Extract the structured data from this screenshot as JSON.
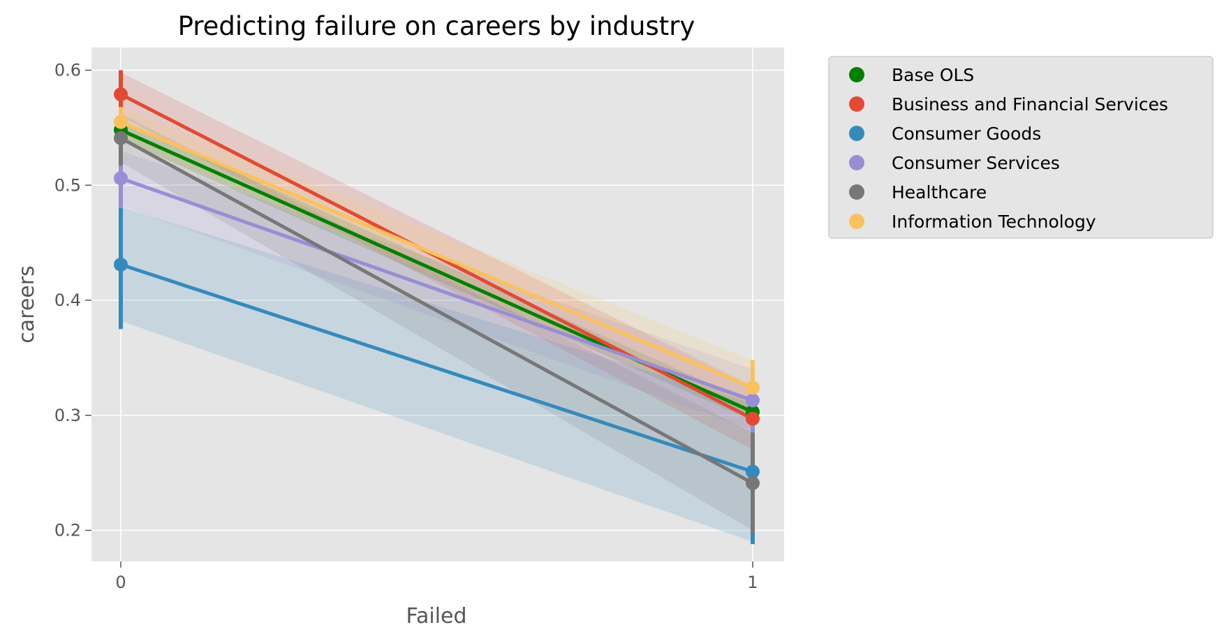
{
  "chart_data": {
    "type": "line",
    "title": "Predicting failure on careers by industry",
    "xlabel": "Failed",
    "ylabel": "careers",
    "x": [
      0,
      1
    ],
    "x_tick_labels": [
      "0",
      "1"
    ],
    "ylim": [
      0.17,
      0.62
    ],
    "y_ticks": [
      0.2,
      0.3,
      0.4,
      0.5,
      0.6
    ],
    "y_tick_labels": [
      "0.2",
      "0.3",
      "0.4",
      "0.5",
      "0.6"
    ],
    "grid": true,
    "legend": "outside-right-top",
    "series": [
      {
        "name": "Base OLS",
        "color": "#008000",
        "values": [
          0.548,
          0.303
        ],
        "ci_low": [
          0.54,
          0.295
        ],
        "ci_high": [
          0.556,
          0.311
        ],
        "err_low": [
          0.54,
          0.296
        ],
        "err_high": [
          0.556,
          0.31
        ]
      },
      {
        "name": "Business and Financial Services",
        "color": "#E24A33",
        "values": [
          0.579,
          0.297
        ],
        "ci_low": [
          0.56,
          0.27
        ],
        "ci_high": [
          0.598,
          0.325
        ],
        "err_low": [
          0.558,
          0.272
        ],
        "err_high": [
          0.6,
          0.322
        ]
      },
      {
        "name": "Consumer Goods",
        "color": "#348ABD",
        "values": [
          0.431,
          0.251
        ],
        "ci_low": [
          0.382,
          0.19
        ],
        "ci_high": [
          0.481,
          0.31
        ],
        "err_low": [
          0.375,
          0.188
        ],
        "err_high": [
          0.485,
          0.312
        ]
      },
      {
        "name": "Consumer Services",
        "color": "#988ED5",
        "values": [
          0.506,
          0.313
        ],
        "ci_low": [
          0.482,
          0.287
        ],
        "ci_high": [
          0.53,
          0.34
        ],
        "err_low": [
          0.48,
          0.285
        ],
        "err_high": [
          0.532,
          0.34
        ]
      },
      {
        "name": "Healthcare",
        "color": "#777777",
        "values": [
          0.541,
          0.241
        ],
        "ci_low": [
          0.52,
          0.2
        ],
        "ci_high": [
          0.562,
          0.285
        ],
        "err_low": [
          0.517,
          0.198
        ],
        "err_high": [
          0.565,
          0.285
        ]
      },
      {
        "name": "Information Technology",
        "color": "#FBC15E",
        "values": [
          0.555,
          0.324
        ],
        "ci_low": [
          0.54,
          0.3
        ],
        "ci_high": [
          0.568,
          0.348
        ],
        "err_low": [
          0.54,
          0.3
        ],
        "err_high": [
          0.568,
          0.348
        ]
      }
    ]
  }
}
